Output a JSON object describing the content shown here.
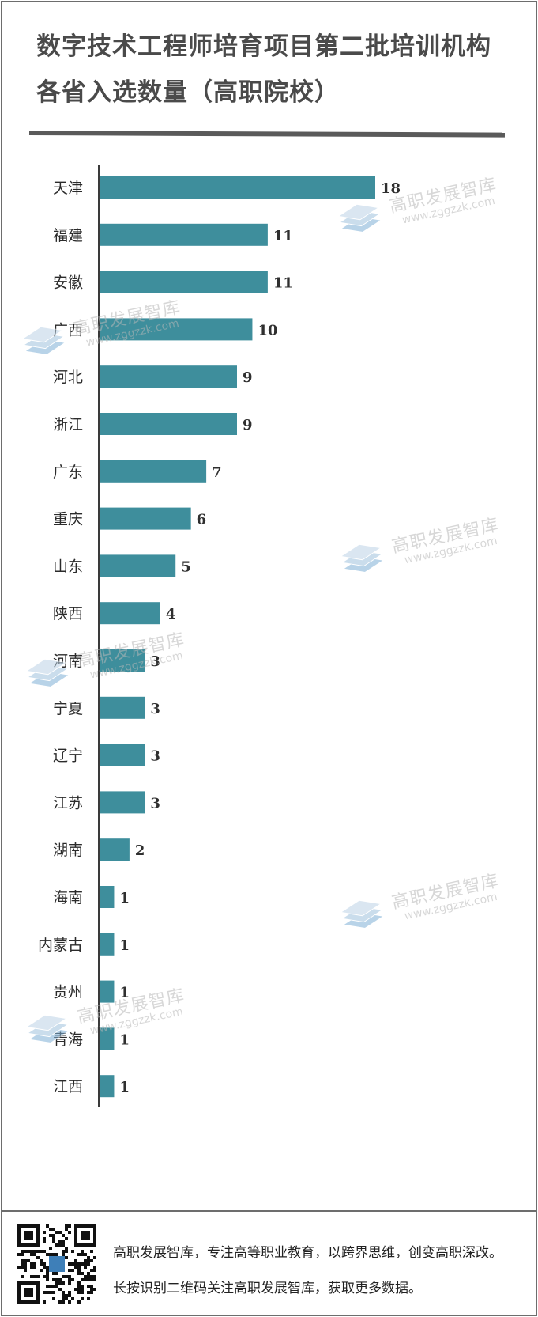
{
  "title": {
    "line1": "数字技术工程师培育项目第二批培训机构",
    "line2": "各省入选数量（高职院校）"
  },
  "colors": {
    "bar": "#3e8e9c",
    "axis": "#3a3a3a",
    "title": "#4a4a4a"
  },
  "chart_data": {
    "type": "bar",
    "orientation": "horizontal",
    "categories": [
      "天津",
      "福建",
      "安徽",
      "广西",
      "河北",
      "浙江",
      "广东",
      "重庆",
      "山东",
      "陕西",
      "河南",
      "宁夏",
      "辽宁",
      "江苏",
      "湖南",
      "海南",
      "内蒙古",
      "贵州",
      "青海",
      "江西"
    ],
    "values": [
      18,
      11,
      11,
      10,
      9,
      9,
      7,
      6,
      5,
      4,
      3,
      3,
      3,
      3,
      2,
      1,
      1,
      1,
      1,
      1
    ],
    "xlim": [
      0,
      18
    ],
    "grid": false,
    "legend": "none"
  },
  "watermark": {
    "name": "高职发展智库",
    "url": "www.zggzzk.com",
    "logo_icon": "stacked-layers-icon"
  },
  "footer": {
    "qr_icon": "qr-code-icon",
    "line1": "高职发展智库，专注高等职业教育，以跨界思维，创变高职深改。",
    "line2": "长按识别二维码关注高职发展智库，获取更多数据。"
  }
}
